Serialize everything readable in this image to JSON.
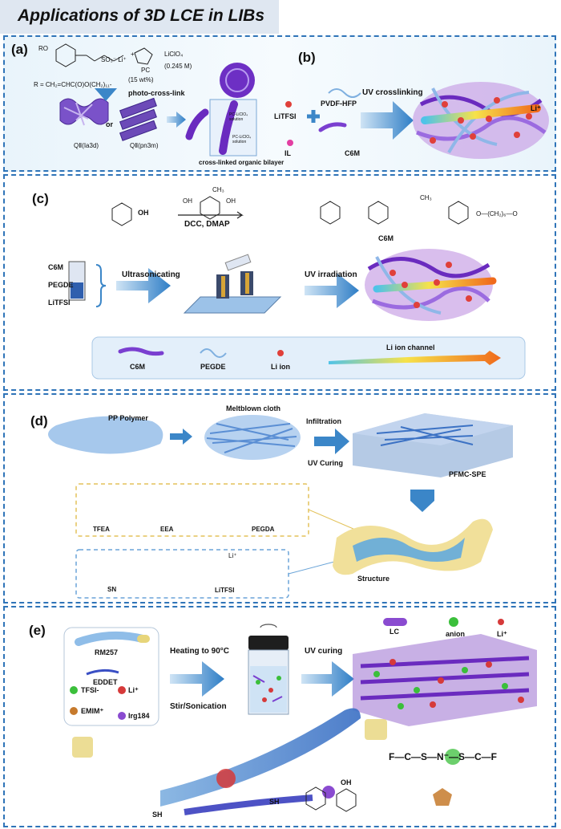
{
  "title": "Applications of 3D LCE in LIBs",
  "panel_a": {
    "label": "(a)",
    "formula_ro": "RO",
    "formula_so3": "SO₃⁻ Li⁺",
    "formula_plus": "+",
    "pc": "PC",
    "liclo4": "LiClO₄",
    "conc": "(0.245 M)",
    "wt": "(15 wt%)",
    "r_group": "R = CH₂=CHC(O)O(CH₂)₁₁-",
    "photo": "photo-cross-link",
    "q1": "QⅡ(Ia3d)",
    "or": "or",
    "q2": "QⅡ(pn3m)",
    "sol1": "PC-LiClO₄ solution",
    "sol2": "PC-LiClO₄ solution",
    "bilayer": "cross-linked organic bilayer"
  },
  "panel_b": {
    "label": "(b)",
    "litfsi": "LiTFSI",
    "pvdf": "PVDF-HFP",
    "il": "IL",
    "c6m": "C6M",
    "uv": "UV crosslinking",
    "li": "Li⁺"
  },
  "panel_c": {
    "label": "(c)",
    "oh1": "OH",
    "ch3": "CH₃",
    "oh2": "OH",
    "oh3": "OH",
    "dcc": "DCC, DMAP",
    "ch3b": "CH₃",
    "chain": "O—(CH₂)₆—O",
    "c6m_prod": "C6M",
    "c6m": "C6M",
    "pegde": "PEGDE",
    "litfsi": "LiTFSI",
    "ultra": "Ultrasonicating",
    "uv": "UV irradiation",
    "legend_c6m": "C6M",
    "legend_pegde": "PEGDE",
    "legend_li": "Li ion",
    "legend_channel": "Li  ion channel"
  },
  "panel_d": {
    "label": "(d)",
    "pp": "PP Polymer",
    "melt": "Meltblown cloth",
    "infil": "Infiltration",
    "uvcure": "UV Curing",
    "pfmc": "PFMC-SPE",
    "tfea": "TFEA",
    "eea": "EEA",
    "pegda": "PEGDA",
    "sn": "SN",
    "litfsi": "LiTFSI",
    "structure": "Structure",
    "li": "Li⁺"
  },
  "panel_e": {
    "label": "(e)",
    "rm257": "RM257",
    "eddet": "EDDET",
    "tfsi": "TFSI-",
    "li": "Li⁺",
    "emim": "EMIM⁺",
    "irg": "Irg184",
    "heat": "Heating to 90°C",
    "stir": "Stir/Sonication",
    "uv": "UV curing",
    "lc": "LC",
    "anion": "anion",
    "li2": "Li⁺",
    "sh1": "SH",
    "sh2": "SH",
    "oh": "OH",
    "f_formula": "F—C—S—N⁻—S—C—F"
  },
  "colors": {
    "border": "#2f74b8",
    "purple": "#6a2bbf",
    "blue_fiber": "#7fb0e0",
    "li_red": "#e0403a",
    "anion_green": "#3bbf3b",
    "arrow": "#3b86c8"
  }
}
